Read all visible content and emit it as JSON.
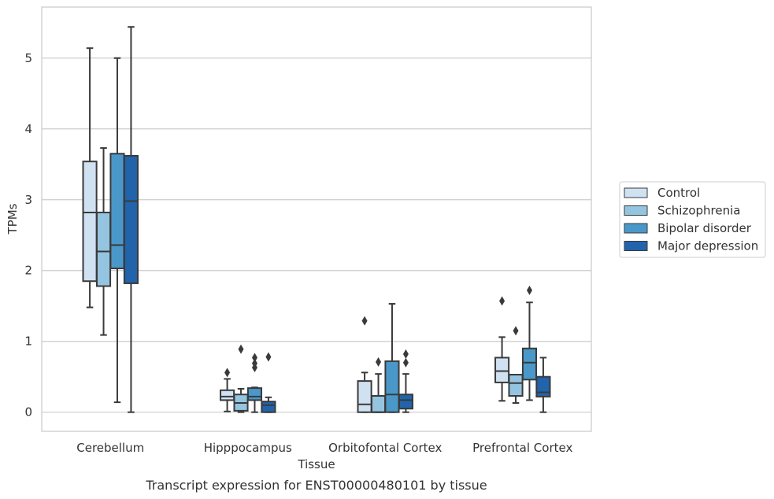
{
  "chart_data": {
    "type": "box",
    "xlabel": "Tissue",
    "ylabel": "TPMs",
    "caption": "Transcript expression for ENST00000480101 by tissue",
    "ylim": [
      -0.27,
      5.72
    ],
    "yticks": [
      0,
      1,
      2,
      3,
      4,
      5
    ],
    "grid": "horizontal",
    "legend_position": "right",
    "categories": [
      "Cerebellum",
      "Hipppocampus",
      "Orbitofontal Cortex",
      "Prefrontal Cortex"
    ],
    "series": [
      {
        "name": "Control",
        "color": "#d0e1f2",
        "boxes": [
          {
            "whislo": 1.48,
            "q1": 1.85,
            "med": 2.82,
            "q3": 3.54,
            "whishi": 5.14,
            "fliers": []
          },
          {
            "whislo": 0.01,
            "q1": 0.17,
            "med": 0.22,
            "q3": 0.31,
            "whishi": 0.47,
            "fliers": [
              0.56
            ]
          },
          {
            "whislo": 0.0,
            "q1": 0.0,
            "med": 0.11,
            "q3": 0.44,
            "whishi": 0.56,
            "fliers": [
              1.29
            ]
          },
          {
            "whislo": 0.16,
            "q1": 0.42,
            "med": 0.58,
            "q3": 0.77,
            "whishi": 1.06,
            "fliers": [
              1.57
            ]
          }
        ]
      },
      {
        "name": "Schizophrenia",
        "color": "#94c4df",
        "boxes": [
          {
            "whislo": 1.09,
            "q1": 1.78,
            "med": 2.27,
            "q3": 2.82,
            "whishi": 3.73,
            "fliers": []
          },
          {
            "whislo": 0.0,
            "q1": 0.02,
            "med": 0.13,
            "q3": 0.25,
            "whishi": 0.33,
            "fliers": [
              0.89
            ]
          },
          {
            "whislo": 0.0,
            "q1": 0.0,
            "med": 0.0,
            "q3": 0.23,
            "whishi": 0.54,
            "fliers": [
              0.71
            ]
          },
          {
            "whislo": 0.13,
            "q1": 0.23,
            "med": 0.41,
            "q3": 0.53,
            "whishi": 0.53,
            "fliers": [
              1.15
            ]
          }
        ]
      },
      {
        "name": "Bipolar disorder",
        "color": "#4a98c9",
        "boxes": [
          {
            "whislo": 0.14,
            "q1": 2.03,
            "med": 2.36,
            "q3": 3.65,
            "whishi": 5.0,
            "fliers": []
          },
          {
            "whislo": 0.0,
            "q1": 0.17,
            "med": 0.22,
            "q3": 0.34,
            "whishi": 0.35,
            "fliers": [
              0.63,
              0.69,
              0.77
            ]
          },
          {
            "whislo": 0.0,
            "q1": 0.0,
            "med": 0.25,
            "q3": 0.72,
            "whishi": 1.53,
            "fliers": []
          },
          {
            "whislo": 0.17,
            "q1": 0.46,
            "med": 0.7,
            "q3": 0.9,
            "whishi": 1.55,
            "fliers": [
              1.72
            ]
          }
        ]
      },
      {
        "name": "Major depression",
        "color": "#2164ab",
        "boxes": [
          {
            "whislo": 0.0,
            "q1": 1.82,
            "med": 2.98,
            "q3": 3.62,
            "whishi": 5.44,
            "fliers": []
          },
          {
            "whislo": 0.0,
            "q1": 0.0,
            "med": 0.1,
            "q3": 0.15,
            "whishi": 0.21,
            "fliers": [
              0.78
            ]
          },
          {
            "whislo": 0.0,
            "q1": 0.05,
            "med": 0.17,
            "q3": 0.25,
            "whishi": 0.54,
            "fliers": [
              0.7,
              0.82
            ]
          },
          {
            "whislo": 0.0,
            "q1": 0.22,
            "med": 0.28,
            "q3": 0.5,
            "whishi": 0.77,
            "fliers": []
          }
        ]
      }
    ]
  }
}
